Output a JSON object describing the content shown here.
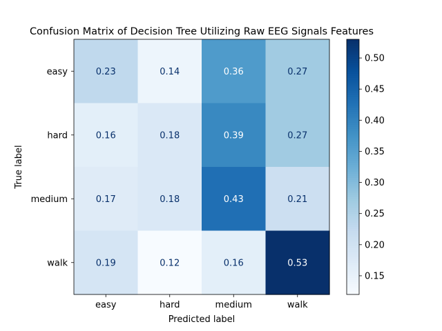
{
  "chart_data": {
    "type": "heatmap",
    "title": "Confusion Matrix of Decision Tree Utilizing Raw EEG Signals Features",
    "xlabel": "Predicted label",
    "ylabel": "True label",
    "x_categories": [
      "easy",
      "hard",
      "medium",
      "walk"
    ],
    "y_categories": [
      "easy",
      "hard",
      "medium",
      "walk"
    ],
    "values": [
      [
        0.23,
        0.14,
        0.36,
        0.27
      ],
      [
        0.16,
        0.18,
        0.39,
        0.27
      ],
      [
        0.17,
        0.18,
        0.43,
        0.21
      ],
      [
        0.19,
        0.12,
        0.16,
        0.53
      ]
    ],
    "colormap": "Blues",
    "colorbar": {
      "range": [
        0.12,
        0.53
      ],
      "ticks": [
        "0.15",
        "0.20",
        "0.25",
        "0.30",
        "0.35",
        "0.40",
        "0.45",
        "0.50"
      ]
    },
    "grid": false
  }
}
